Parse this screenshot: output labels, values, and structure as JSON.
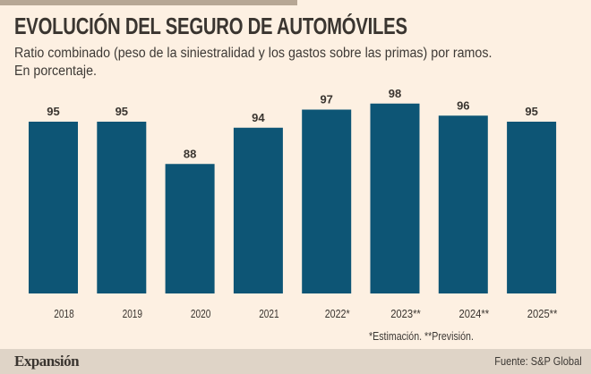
{
  "header": {
    "title": "EVOLUCIÓN DEL SEGURO DE AUTOMÓVILES",
    "subtitle_line1": "Ratio combinado (peso de la siniestralidad y los gastos sobre las primas) por ramos.",
    "subtitle_line2": "En porcentaje."
  },
  "colors": {
    "background": "#fdf0e2",
    "bar": "#0d5575",
    "text": "#3a3530",
    "footer": "#dfd4c7"
  },
  "chart_data": {
    "type": "bar",
    "title": "EVOLUCIÓN DEL SEGURO DE AUTOMÓVILES",
    "subtitle": "Ratio combinado (peso de la siniestralidad y los gastos sobre las primas) por ramos. En porcentaje.",
    "categories": [
      "2018",
      "2019",
      "2020",
      "2021",
      "2022*",
      "2023**",
      "2024**",
      "2025**"
    ],
    "values": [
      95,
      95,
      88,
      94,
      97,
      98,
      96,
      95
    ],
    "xlabel": "",
    "ylabel": "",
    "ylim": [
      55,
      100
    ],
    "grid": false,
    "data_labels": true,
    "annotations": [
      "*Estimación. **Previsión."
    ]
  },
  "footnote": "*Estimación. **Previsión.",
  "footer": {
    "brand": "Expansión",
    "source": "Fuente: S&P Global"
  }
}
